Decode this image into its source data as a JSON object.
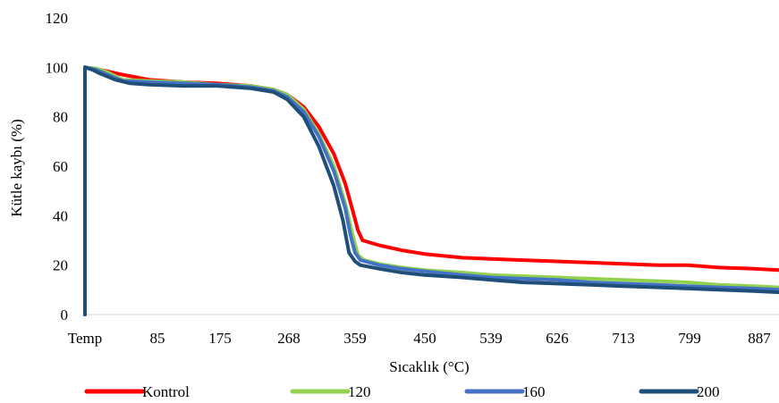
{
  "chart_data": {
    "type": "line",
    "title": "",
    "xlabel": "Sıcaklık (°C)",
    "ylabel": "Kütle kaybı (%)",
    "x_tick_labels": [
      "Temp",
      "85",
      "175",
      "268",
      "359",
      "450",
      "539",
      "626",
      "713",
      "799",
      "887"
    ],
    "y_tick_labels": [
      "0",
      "20",
      "40",
      "60",
      "80",
      "100",
      "120"
    ],
    "ylim": [
      0,
      120
    ],
    "grid": false,
    "legend_position": "bottom",
    "series": [
      {
        "name": "Kontrol",
        "color": "#ff0000",
        "points": [
          [
            0,
            0
          ],
          [
            0,
            100
          ],
          [
            20,
            99
          ],
          [
            50,
            97
          ],
          [
            85,
            95
          ],
          [
            130,
            94
          ],
          [
            175,
            93.5
          ],
          [
            220,
            92.5
          ],
          [
            250,
            91
          ],
          [
            268,
            89
          ],
          [
            290,
            84
          ],
          [
            310,
            76
          ],
          [
            330,
            65
          ],
          [
            345,
            53
          ],
          [
            355,
            42
          ],
          [
            362,
            34
          ],
          [
            368,
            30
          ],
          [
            390,
            28
          ],
          [
            420,
            26
          ],
          [
            450,
            24.5
          ],
          [
            500,
            23
          ],
          [
            539,
            22.5
          ],
          [
            580,
            22
          ],
          [
            626,
            21.5
          ],
          [
            670,
            21
          ],
          [
            713,
            20.5
          ],
          [
            760,
            20
          ],
          [
            799,
            20
          ],
          [
            840,
            19
          ],
          [
            887,
            18.5
          ],
          [
            920,
            18
          ]
        ]
      },
      {
        "name": "120",
        "color": "#92d050",
        "points": [
          [
            0,
            0
          ],
          [
            0,
            100
          ],
          [
            15,
            99.5
          ],
          [
            30,
            98
          ],
          [
            50,
            95
          ],
          [
            85,
            94.5
          ],
          [
            130,
            94
          ],
          [
            175,
            93
          ],
          [
            220,
            92.5
          ],
          [
            250,
            91
          ],
          [
            268,
            89
          ],
          [
            290,
            83
          ],
          [
            310,
            73
          ],
          [
            330,
            60
          ],
          [
            345,
            45
          ],
          [
            355,
            32
          ],
          [
            362,
            24
          ],
          [
            370,
            22
          ],
          [
            390,
            20.5
          ],
          [
            420,
            19
          ],
          [
            450,
            18
          ],
          [
            500,
            17
          ],
          [
            539,
            16
          ],
          [
            580,
            15.5
          ],
          [
            626,
            15
          ],
          [
            670,
            14.5
          ],
          [
            713,
            14
          ],
          [
            760,
            13.5
          ],
          [
            799,
            13
          ],
          [
            840,
            12
          ],
          [
            887,
            11.5
          ],
          [
            920,
            11
          ]
        ]
      },
      {
        "name": "160",
        "color": "#4472c4",
        "points": [
          [
            0,
            0
          ],
          [
            0,
            100
          ],
          [
            15,
            99
          ],
          [
            30,
            97
          ],
          [
            50,
            94.5
          ],
          [
            85,
            94
          ],
          [
            130,
            93.5
          ],
          [
            175,
            93
          ],
          [
            220,
            92
          ],
          [
            250,
            90.5
          ],
          [
            268,
            88
          ],
          [
            290,
            82
          ],
          [
            310,
            72
          ],
          [
            330,
            58
          ],
          [
            345,
            43
          ],
          [
            352,
            32
          ],
          [
            358,
            25
          ],
          [
            365,
            22
          ],
          [
            390,
            20
          ],
          [
            420,
            18.5
          ],
          [
            450,
            17.5
          ],
          [
            500,
            16
          ],
          [
            539,
            15
          ],
          [
            580,
            14.5
          ],
          [
            626,
            14
          ],
          [
            670,
            13
          ],
          [
            713,
            12.5
          ],
          [
            760,
            12
          ],
          [
            799,
            11.5
          ],
          [
            840,
            11
          ],
          [
            887,
            10.5
          ],
          [
            920,
            10
          ]
        ]
      },
      {
        "name": "200",
        "color": "#1f4e79",
        "points": [
          [
            0,
            0
          ],
          [
            0,
            100
          ],
          [
            10,
            99
          ],
          [
            20,
            97.5
          ],
          [
            40,
            95
          ],
          [
            60,
            93.5
          ],
          [
            85,
            93
          ],
          [
            130,
            92.5
          ],
          [
            175,
            92.5
          ],
          [
            220,
            91.5
          ],
          [
            250,
            90
          ],
          [
            268,
            87
          ],
          [
            290,
            80
          ],
          [
            310,
            68
          ],
          [
            330,
            52
          ],
          [
            342,
            38
          ],
          [
            350,
            25
          ],
          [
            358,
            21.5
          ],
          [
            365,
            20
          ],
          [
            390,
            18.5
          ],
          [
            420,
            17
          ],
          [
            450,
            16
          ],
          [
            500,
            15
          ],
          [
            539,
            14
          ],
          [
            580,
            13
          ],
          [
            626,
            12.5
          ],
          [
            670,
            12
          ],
          [
            713,
            11.5
          ],
          [
            760,
            11
          ],
          [
            799,
            10.5
          ],
          [
            840,
            10
          ],
          [
            887,
            9.5
          ],
          [
            920,
            9
          ]
        ]
      }
    ]
  }
}
